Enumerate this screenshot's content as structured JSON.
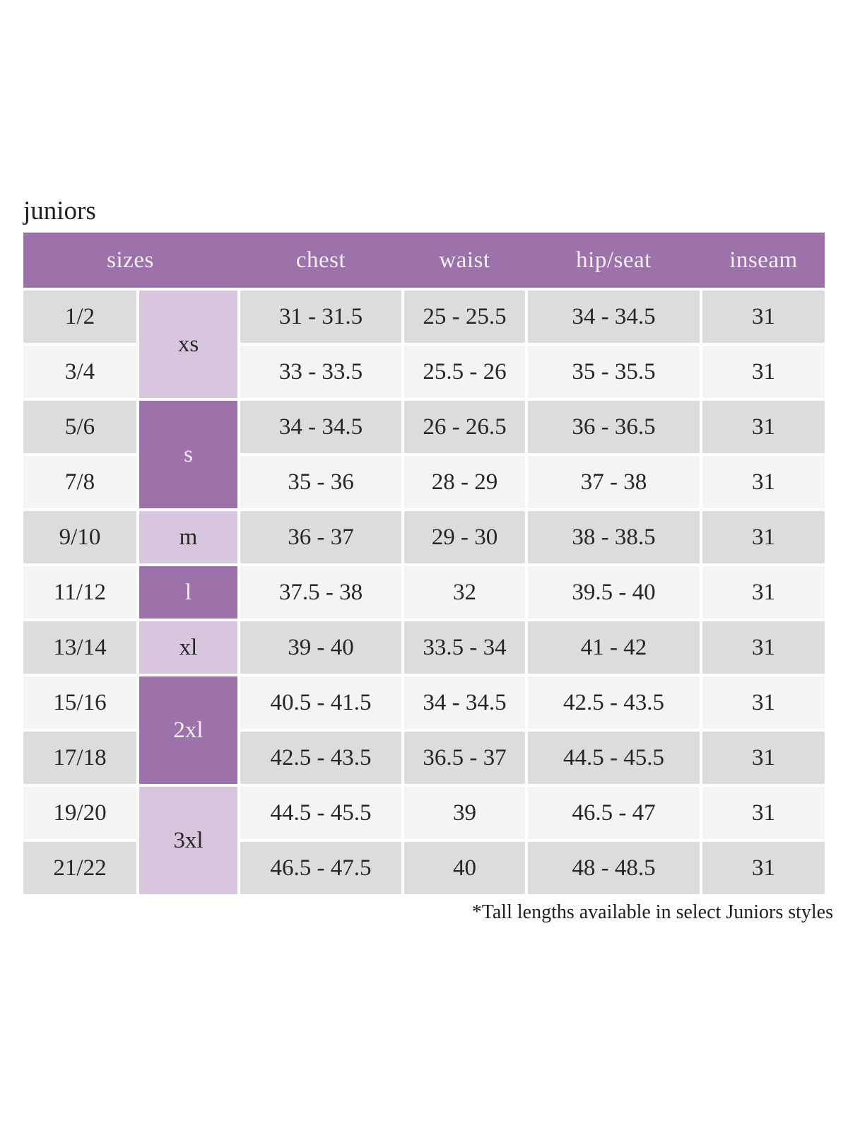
{
  "title": "juniors",
  "footnote": "*Tall lengths available in select Juniors styles",
  "colors": {
    "header_bg": "#9d71aa",
    "size_group_dark": "#9d71aa",
    "size_group_light": "#d7c6de",
    "row_dark": "#dcdcdc",
    "row_light": "#f4f4f3",
    "header_text": "#f6eff6",
    "body_text": "#262626"
  },
  "table": {
    "headers": [
      "sizes",
      "chest",
      "waist",
      "hip/seat",
      "inseam"
    ],
    "size_groups": [
      {
        "label": "xs",
        "rows": 2,
        "tone": "light"
      },
      {
        "label": "s",
        "rows": 2,
        "tone": "dark"
      },
      {
        "label": "m",
        "rows": 1,
        "tone": "light"
      },
      {
        "label": "l",
        "rows": 1,
        "tone": "dark"
      },
      {
        "label": "xl",
        "rows": 1,
        "tone": "light"
      },
      {
        "label": "2xl",
        "rows": 2,
        "tone": "dark"
      },
      {
        "label": "3xl",
        "rows": 2,
        "tone": "light"
      }
    ],
    "rows": [
      {
        "size": "1/2",
        "group": "xs",
        "chest": "31 - 31.5",
        "waist": "25 - 25.5",
        "hip_seat": "34 - 34.5",
        "inseam": "31"
      },
      {
        "size": "3/4",
        "group": "xs",
        "chest": "33 - 33.5",
        "waist": "25.5 - 26",
        "hip_seat": "35 - 35.5",
        "inseam": "31"
      },
      {
        "size": "5/6",
        "group": "s",
        "chest": "34 - 34.5",
        "waist": "26 - 26.5",
        "hip_seat": "36 - 36.5",
        "inseam": "31"
      },
      {
        "size": "7/8",
        "group": "s",
        "chest": "35 - 36",
        "waist": "28 - 29",
        "hip_seat": "37 - 38",
        "inseam": "31"
      },
      {
        "size": "9/10",
        "group": "m",
        "chest": "36 - 37",
        "waist": "29 - 30",
        "hip_seat": "38 - 38.5",
        "inseam": "31"
      },
      {
        "size": "11/12",
        "group": "l",
        "chest": "37.5 - 38",
        "waist": "32",
        "hip_seat": "39.5 - 40",
        "inseam": "31"
      },
      {
        "size": "13/14",
        "group": "xl",
        "chest": "39 - 40",
        "waist": "33.5 - 34",
        "hip_seat": "41 - 42",
        "inseam": "31"
      },
      {
        "size": "15/16",
        "group": "2xl",
        "chest": "40.5 - 41.5",
        "waist": "34 - 34.5",
        "hip_seat": "42.5 - 43.5",
        "inseam": "31"
      },
      {
        "size": "17/18",
        "group": "2xl",
        "chest": "42.5 - 43.5",
        "waist": "36.5 - 37",
        "hip_seat": "44.5 - 45.5",
        "inseam": "31"
      },
      {
        "size": "19/20",
        "group": "3xl",
        "chest": "44.5 - 45.5",
        "waist": "39",
        "hip_seat": "46.5 - 47",
        "inseam": "31"
      },
      {
        "size": "21/22",
        "group": "3xl",
        "chest": "46.5 - 47.5",
        "waist": "40",
        "hip_seat": "48 - 48.5",
        "inseam": "31"
      }
    ]
  }
}
